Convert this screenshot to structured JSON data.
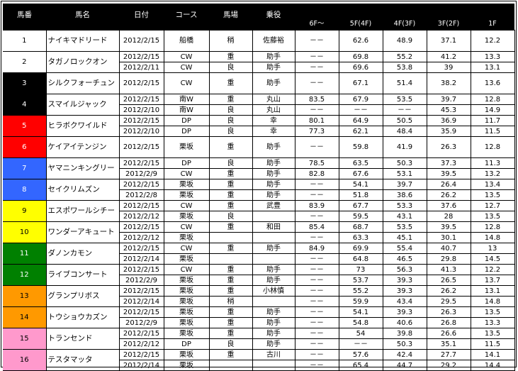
{
  "header": [
    "馬番",
    "馬名",
    "日付",
    "コース",
    "馬場",
    "乗役",
    "6F～",
    "5F(4F)",
    "4F(3F)",
    "3F(2F)",
    "1F"
  ],
  "horses": [
    {
      "no": "1",
      "name": "ナイキマドリード",
      "bg": "#ffffff",
      "fg": "#000000",
      "rows": [
        [
          "2012/2/15",
          "船橋",
          "稍",
          "佐藤裕",
          "－－",
          "62.6",
          "48.9",
          "37.1",
          "12.2"
        ]
      ]
    },
    {
      "no": "2",
      "name": "タガノロックオン",
      "bg": "#ffffff",
      "fg": "#000000",
      "rows": [
        [
          "2012/2/15",
          "CW",
          "重",
          "助手",
          "－－",
          "69.8",
          "55.2",
          "41.2",
          "13.3"
        ],
        [
          "2012/2/11",
          "CW",
          "良",
          "助手",
          "－－",
          "69.6",
          "53.8",
          "39",
          "13.1"
        ]
      ]
    },
    {
      "no": "3",
      "name": "シルクフォーチュン",
      "bg": "#000000",
      "fg": "#ffffff",
      "rows": [
        [
          "2012/2/15",
          "CW",
          "重",
          "助手",
          "－－",
          "67.1",
          "51.4",
          "38.2",
          "13.6"
        ]
      ]
    },
    {
      "no": "4",
      "name": "スマイルジャック",
      "bg": "#000000",
      "fg": "#ffffff",
      "rows": [
        [
          "2012/2/15",
          "南W",
          "重",
          "丸山",
          "83.5",
          "67.9",
          "53.5",
          "39.7",
          "12.8"
        ],
        [
          "2012/2/10",
          "南W",
          "良",
          "丸山",
          "－－",
          "－－",
          "－－",
          "45.3",
          "14.9"
        ]
      ]
    },
    {
      "no": "5",
      "name": "ヒラボクワイルド",
      "bg": "#ff0000",
      "fg": "#ffffff",
      "rows": [
        [
          "2012/2/15",
          "DP",
          "良",
          "幸",
          "80.1",
          "64.9",
          "50.5",
          "36.9",
          "11.7"
        ],
        [
          "2012/2/10",
          "DP",
          "良",
          "幸",
          "77.3",
          "62.1",
          "48.4",
          "35.9",
          "11.5"
        ]
      ]
    },
    {
      "no": "6",
      "name": "ケイアイテンジン",
      "bg": "#ff0000",
      "fg": "#ffffff",
      "rows": [
        [
          "2012/2/15",
          "栗坂",
          "重",
          "助手",
          "－－",
          "59.8",
          "41.9",
          "26.3",
          "12.8"
        ]
      ]
    },
    {
      "no": "7",
      "name": "ヤマニンキングリー",
      "bg": "#3366ff",
      "fg": "#ffffff",
      "rows": [
        [
          "2012/2/15",
          "DP",
          "良",
          "助手",
          "78.5",
          "63.5",
          "50.3",
          "37.3",
          "11.3"
        ],
        [
          "2012/2/9",
          "CW",
          "重",
          "助手",
          "82.8",
          "67.6",
          "53.1",
          "39.5",
          "13.2"
        ]
      ]
    },
    {
      "no": "8",
      "name": "セイクリムズン",
      "bg": "#3366ff",
      "fg": "#ffffff",
      "rows": [
        [
          "2012/2/15",
          "栗坂",
          "重",
          "助手",
          "－－",
          "54.1",
          "39.7",
          "26.4",
          "13.4"
        ],
        [
          "2012/2/8",
          "栗坂",
          "重",
          "助手",
          "－－",
          "51.8",
          "38.6",
          "26.2",
          "13.5"
        ]
      ]
    },
    {
      "no": "9",
      "name": "エスポワールシチー",
      "bg": "#ffff00",
      "fg": "#000000",
      "rows": [
        [
          "2012/2/15",
          "CW",
          "重",
          "武豊",
          "83.9",
          "67.7",
          "53.3",
          "37.6",
          "12.7"
        ],
        [
          "2012/2/12",
          "栗坂",
          "良",
          "",
          "－－",
          "59.5",
          "43.1",
          "28",
          "13.5"
        ]
      ]
    },
    {
      "no": "10",
      "name": "ワンダーアキュート",
      "bg": "#ffff00",
      "fg": "#000000",
      "rows": [
        [
          "2012/2/15",
          "CW",
          "重",
          "和田",
          "85.4",
          "68.7",
          "53.5",
          "39.5",
          "12.8"
        ],
        [
          "2012/2/12",
          "栗坂",
          "",
          "",
          "－－",
          "63.3",
          "45.1",
          "30.1",
          "14.8"
        ]
      ]
    },
    {
      "no": "11",
      "name": "ダノンカモン",
      "bg": "#008000",
      "fg": "#ffffff",
      "rows": [
        [
          "2012/2/15",
          "CW",
          "重",
          "助手",
          "84.9",
          "69.9",
          "55.4",
          "40.7",
          "13"
        ],
        [
          "2012/2/14",
          "栗坂",
          "",
          "",
          "－－",
          "64.8",
          "46.5",
          "29.8",
          "14.5"
        ]
      ]
    },
    {
      "no": "12",
      "name": "ライブコンサート",
      "bg": "#008000",
      "fg": "#ffffff",
      "rows": [
        [
          "2012/2/15",
          "CW",
          "重",
          "助手",
          "－－",
          "73",
          "56.3",
          "41.3",
          "12.2"
        ],
        [
          "2012/2/9",
          "栗坂",
          "重",
          "助手",
          "－－",
          "53.7",
          "39.3",
          "26.5",
          "13.7"
        ]
      ]
    },
    {
      "no": "13",
      "name": "グランプリボス",
      "bg": "#ff9900",
      "fg": "#000000",
      "rows": [
        [
          "2012/2/15",
          "栗坂",
          "重",
          "小林慎",
          "－－",
          "55.2",
          "39.3",
          "26.2",
          "13.1"
        ],
        [
          "2012/2/14",
          "栗坂",
          "稍",
          "",
          "－－",
          "59.9",
          "43.4",
          "29.5",
          "14.8"
        ]
      ]
    },
    {
      "no": "14",
      "name": "トウショウカズン",
      "bg": "#ff9900",
      "fg": "#000000",
      "rows": [
        [
          "2012/2/15",
          "栗坂",
          "重",
          "助手",
          "－－",
          "54.1",
          "39.3",
          "26.3",
          "13.5"
        ],
        [
          "2012/2/9",
          "栗坂",
          "重",
          "助手",
          "－－",
          "54.8",
          "40.6",
          "26.8",
          "13.3"
        ]
      ]
    },
    {
      "no": "15",
      "name": "トランセンド",
      "bg": "#ff99cc",
      "fg": "#000000",
      "rows": [
        [
          "2012/2/15",
          "栗坂",
          "重",
          "助手",
          "－－",
          "54",
          "39.8",
          "26.6",
          "13.5"
        ],
        [
          "2012/2/12",
          "DP",
          "良",
          "助手",
          "－－",
          "－－",
          "50.3",
          "35.1",
          "11.5"
        ]
      ]
    },
    {
      "no": "16",
      "name": "テスタマッタ",
      "bg": "#ff99cc",
      "fg": "#000000",
      "rows": [
        [
          "2012/2/15",
          "栗坂",
          "重",
          "古川",
          "－－",
          "57.6",
          "42.4",
          "27.7",
          "14.1"
        ],
        [
          "2012/2/14",
          "栗坂",
          "",
          "",
          "－－",
          "65.4",
          "44.7",
          "29.2",
          "14.4"
        ]
      ]
    }
  ]
}
